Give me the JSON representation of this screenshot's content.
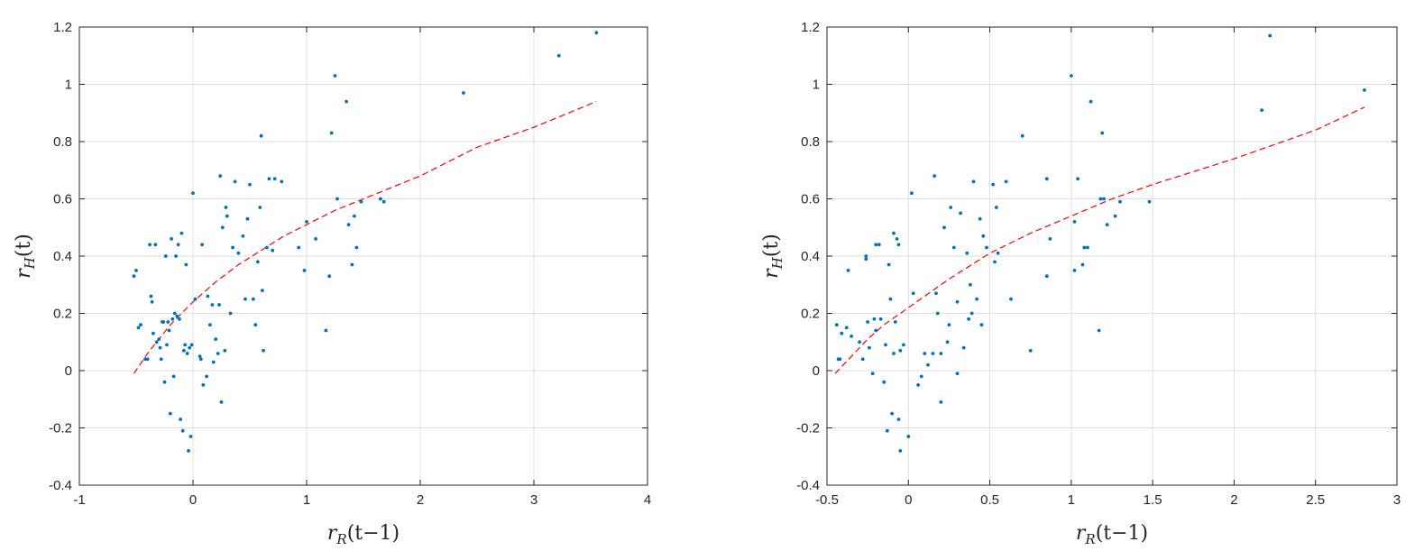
{
  "chart_data": [
    {
      "type": "scatter",
      "xlabel": "r_R(t−1)",
      "ylabel": "r_H(t)",
      "xlim": [
        -1,
        4
      ],
      "ylim": [
        -0.4,
        1.2
      ],
      "xticks": [
        -1,
        0,
        1,
        2,
        3,
        4
      ],
      "xtick_labels": [
        "-1",
        "0",
        "1",
        "2",
        "3",
        "4"
      ],
      "yticks": [
        -0.4,
        -0.2,
        0,
        0.2,
        0.4,
        0.6,
        0.8,
        1,
        1.2
      ],
      "ytick_labels": [
        "-0.4",
        "-0.2",
        "0",
        "0.2",
        "0.4",
        "0.6",
        "0.8",
        "1",
        "1.2"
      ],
      "grid": true,
      "point_color": "#0072BD",
      "fit_color": "#FF0000",
      "points": [
        [
          -0.52,
          0.33
        ],
        [
          -0.5,
          0.35
        ],
        [
          -0.48,
          0.15
        ],
        [
          -0.46,
          0.16
        ],
        [
          -0.42,
          0.04
        ],
        [
          -0.4,
          0.04
        ],
        [
          -0.38,
          0.44
        ],
        [
          -0.37,
          0.26
        ],
        [
          -0.36,
          0.24
        ],
        [
          -0.35,
          0.13
        ],
        [
          -0.33,
          0.44
        ],
        [
          -0.32,
          0.1
        ],
        [
          -0.3,
          0.11
        ],
        [
          -0.29,
          0.08
        ],
        [
          -0.28,
          0.04
        ],
        [
          -0.27,
          0.17
        ],
        [
          -0.26,
          0.17
        ],
        [
          -0.25,
          -0.04
        ],
        [
          -0.24,
          0.4
        ],
        [
          -0.23,
          0.09
        ],
        [
          -0.22,
          0.17
        ],
        [
          -0.21,
          0.14
        ],
        [
          -0.2,
          -0.15
        ],
        [
          -0.19,
          0.46
        ],
        [
          -0.18,
          0.18
        ],
        [
          -0.17,
          -0.02
        ],
        [
          -0.16,
          0.2
        ],
        [
          -0.15,
          0.4
        ],
        [
          -0.14,
          0.19
        ],
        [
          -0.13,
          0.44
        ],
        [
          -0.12,
          0.18
        ],
        [
          -0.11,
          -0.17
        ],
        [
          -0.1,
          0.48
        ],
        [
          -0.09,
          -0.21
        ],
        [
          -0.08,
          0.07
        ],
        [
          -0.07,
          0.09
        ],
        [
          -0.06,
          0.37
        ],
        [
          -0.05,
          0.06
        ],
        [
          -0.04,
          -0.28
        ],
        [
          -0.03,
          0.08
        ],
        [
          -0.02,
          -0.23
        ],
        [
          -0.01,
          0.09
        ],
        [
          0,
          0.62
        ],
        [
          0.02,
          0.25
        ],
        [
          0.06,
          0.05
        ],
        [
          0.07,
          0.04
        ],
        [
          0.08,
          0.44
        ],
        [
          0.09,
          -0.05
        ],
        [
          0.12,
          -0.02
        ],
        [
          0.13,
          0.26
        ],
        [
          0.15,
          0.16
        ],
        [
          0.17,
          0.23
        ],
        [
          0.18,
          0.03
        ],
        [
          0.2,
          0.11
        ],
        [
          0.22,
          0.06
        ],
        [
          0.23,
          0.23
        ],
        [
          0.24,
          0.68
        ],
        [
          0.25,
          -0.11
        ],
        [
          0.26,
          0.5
        ],
        [
          0.28,
          0.07
        ],
        [
          0.29,
          0.57
        ],
        [
          0.3,
          0.54
        ],
        [
          0.33,
          0.2
        ],
        [
          0.35,
          0.43
        ],
        [
          0.37,
          0.66
        ],
        [
          0.4,
          0.41
        ],
        [
          0.44,
          0.47
        ],
        [
          0.46,
          0.25
        ],
        [
          0.48,
          0.53
        ],
        [
          0.5,
          0.65
        ],
        [
          0.53,
          0.25
        ],
        [
          0.55,
          0.16
        ],
        [
          0.57,
          0.38
        ],
        [
          0.59,
          0.57
        ],
        [
          0.6,
          0.82
        ],
        [
          0.61,
          0.28
        ],
        [
          0.62,
          0.07
        ],
        [
          0.65,
          0.43
        ],
        [
          0.67,
          0.67
        ],
        [
          0.7,
          0.42
        ],
        [
          0.72,
          0.67
        ],
        [
          0.78,
          0.66
        ],
        [
          0.93,
          0.43
        ],
        [
          0.98,
          0.35
        ],
        [
          1.0,
          0.52
        ],
        [
          1.08,
          0.46
        ],
        [
          1.17,
          0.14
        ],
        [
          1.2,
          0.33
        ],
        [
          1.22,
          0.83
        ],
        [
          1.25,
          1.03
        ],
        [
          1.27,
          0.6
        ],
        [
          1.35,
          0.94
        ],
        [
          1.37,
          0.51
        ],
        [
          1.4,
          0.37
        ],
        [
          1.42,
          0.54
        ],
        [
          1.44,
          0.43
        ],
        [
          1.48,
          0.59
        ],
        [
          1.65,
          0.6
        ],
        [
          1.68,
          0.59
        ],
        [
          2.38,
          0.97
        ],
        [
          3.22,
          1.1
        ],
        [
          3.55,
          1.18
        ]
      ],
      "fit_line": {
        "x": [
          -0.52,
          -0.4,
          -0.3,
          -0.2,
          -0.1,
          0,
          0.2,
          0.4,
          0.6,
          0.8,
          1.0,
          1.25,
          1.5,
          2.0,
          2.5,
          3.0,
          3.55
        ],
        "y": [
          -0.01,
          0.06,
          0.11,
          0.16,
          0.2,
          0.24,
          0.31,
          0.37,
          0.42,
          0.47,
          0.51,
          0.56,
          0.6,
          0.68,
          0.78,
          0.85,
          0.94
        ]
      }
    },
    {
      "type": "scatter",
      "xlabel": "r_R(t−1)",
      "ylabel": "r_H(t)",
      "xlim": [
        -0.5,
        3
      ],
      "ylim": [
        -0.4,
        1.2
      ],
      "xticks": [
        -0.5,
        0,
        0.5,
        1,
        1.5,
        2,
        2.5,
        3
      ],
      "xtick_labels": [
        "-0.5",
        "0",
        "0.5",
        "1",
        "1.5",
        "2",
        "2.5",
        "3"
      ],
      "yticks": [
        -0.4,
        -0.2,
        0,
        0.2,
        0.4,
        0.6,
        0.8,
        1,
        1.2
      ],
      "ytick_labels": [
        "-0.4",
        "-0.2",
        "0",
        "0.2",
        "0.4",
        "0.6",
        "0.8",
        "1",
        "1.2"
      ],
      "grid": true,
      "point_color": "#0072BD",
      "fit_color": "#FF0000",
      "points": [
        [
          -0.44,
          0.16
        ],
        [
          -0.43,
          0.04
        ],
        [
          -0.42,
          0.04
        ],
        [
          -0.41,
          0.13
        ],
        [
          -0.38,
          0.15
        ],
        [
          -0.37,
          0.35
        ],
        [
          -0.35,
          0.12
        ],
        [
          -0.3,
          0.1
        ],
        [
          -0.28,
          0.04
        ],
        [
          -0.26,
          0.4
        ],
        [
          -0.26,
          0.39
        ],
        [
          -0.25,
          0.17
        ],
        [
          -0.24,
          0.08
        ],
        [
          -0.22,
          -0.01
        ],
        [
          -0.21,
          0.18
        ],
        [
          -0.2,
          0.44
        ],
        [
          -0.2,
          0.14
        ],
        [
          -0.18,
          0.44
        ],
        [
          -0.17,
          0.18
        ],
        [
          -0.15,
          -0.04
        ],
        [
          -0.14,
          0.09
        ],
        [
          -0.13,
          -0.21
        ],
        [
          -0.12,
          0.37
        ],
        [
          -0.11,
          0.25
        ],
        [
          -0.1,
          -0.15
        ],
        [
          -0.09,
          0.48
        ],
        [
          -0.09,
          0.06
        ],
        [
          -0.08,
          0.17
        ],
        [
          -0.07,
          0.46
        ],
        [
          -0.06,
          0.44
        ],
        [
          -0.06,
          -0.17
        ],
        [
          -0.05,
          0.07
        ],
        [
          -0.05,
          -0.28
        ],
        [
          -0.03,
          0.09
        ],
        [
          0,
          -0.23
        ],
        [
          0.02,
          0.62
        ],
        [
          0.03,
          0.27
        ],
        [
          0.06,
          -0.05
        ],
        [
          0.08,
          -0.02
        ],
        [
          0.1,
          0.06
        ],
        [
          0.12,
          0.02
        ],
        [
          0.15,
          0.06
        ],
        [
          0.16,
          0.68
        ],
        [
          0.17,
          0.27
        ],
        [
          0.18,
          0.2
        ],
        [
          0.2,
          0.06
        ],
        [
          0.2,
          -0.11
        ],
        [
          0.22,
          0.5
        ],
        [
          0.24,
          0.1
        ],
        [
          0.25,
          0.16
        ],
        [
          0.26,
          0.57
        ],
        [
          0.28,
          0.43
        ],
        [
          0.3,
          0.24
        ],
        [
          0.3,
          -0.01
        ],
        [
          0.32,
          0.55
        ],
        [
          0.34,
          0.08
        ],
        [
          0.36,
          0.41
        ],
        [
          0.37,
          0.18
        ],
        [
          0.38,
          0.3
        ],
        [
          0.39,
          0.2
        ],
        [
          0.4,
          0.66
        ],
        [
          0.42,
          0.25
        ],
        [
          0.44,
          0.53
        ],
        [
          0.45,
          0.16
        ],
        [
          0.46,
          0.47
        ],
        [
          0.48,
          0.43
        ],
        [
          0.52,
          0.65
        ],
        [
          0.53,
          0.38
        ],
        [
          0.54,
          0.57
        ],
        [
          0.55,
          0.41
        ],
        [
          0.6,
          0.66
        ],
        [
          0.63,
          0.25
        ],
        [
          0.7,
          0.82
        ],
        [
          0.75,
          0.07
        ],
        [
          0.85,
          0.67
        ],
        [
          0.85,
          0.33
        ],
        [
          0.87,
          0.46
        ],
        [
          1.0,
          1.03
        ],
        [
          1.02,
          0.52
        ],
        [
          1.02,
          0.35
        ],
        [
          1.04,
          0.67
        ],
        [
          1.07,
          0.37
        ],
        [
          1.08,
          0.43
        ],
        [
          1.1,
          0.43
        ],
        [
          1.12,
          0.94
        ],
        [
          1.17,
          0.14
        ],
        [
          1.18,
          0.6
        ],
        [
          1.19,
          0.83
        ],
        [
          1.2,
          0.6
        ],
        [
          1.22,
          0.51
        ],
        [
          1.27,
          0.54
        ],
        [
          1.3,
          0.59
        ],
        [
          1.48,
          0.59
        ],
        [
          2.17,
          0.91
        ],
        [
          2.22,
          1.17
        ],
        [
          2.8,
          0.98
        ]
      ],
      "fit_line": {
        "x": [
          -0.45,
          -0.35,
          -0.25,
          -0.15,
          -0.05,
          0,
          0.1,
          0.25,
          0.5,
          0.75,
          1.0,
          1.25,
          1.5,
          2.0,
          2.5,
          2.8
        ],
        "y": [
          -0.01,
          0.05,
          0.11,
          0.16,
          0.2,
          0.22,
          0.26,
          0.32,
          0.41,
          0.48,
          0.54,
          0.6,
          0.65,
          0.74,
          0.84,
          0.92
        ]
      }
    }
  ]
}
